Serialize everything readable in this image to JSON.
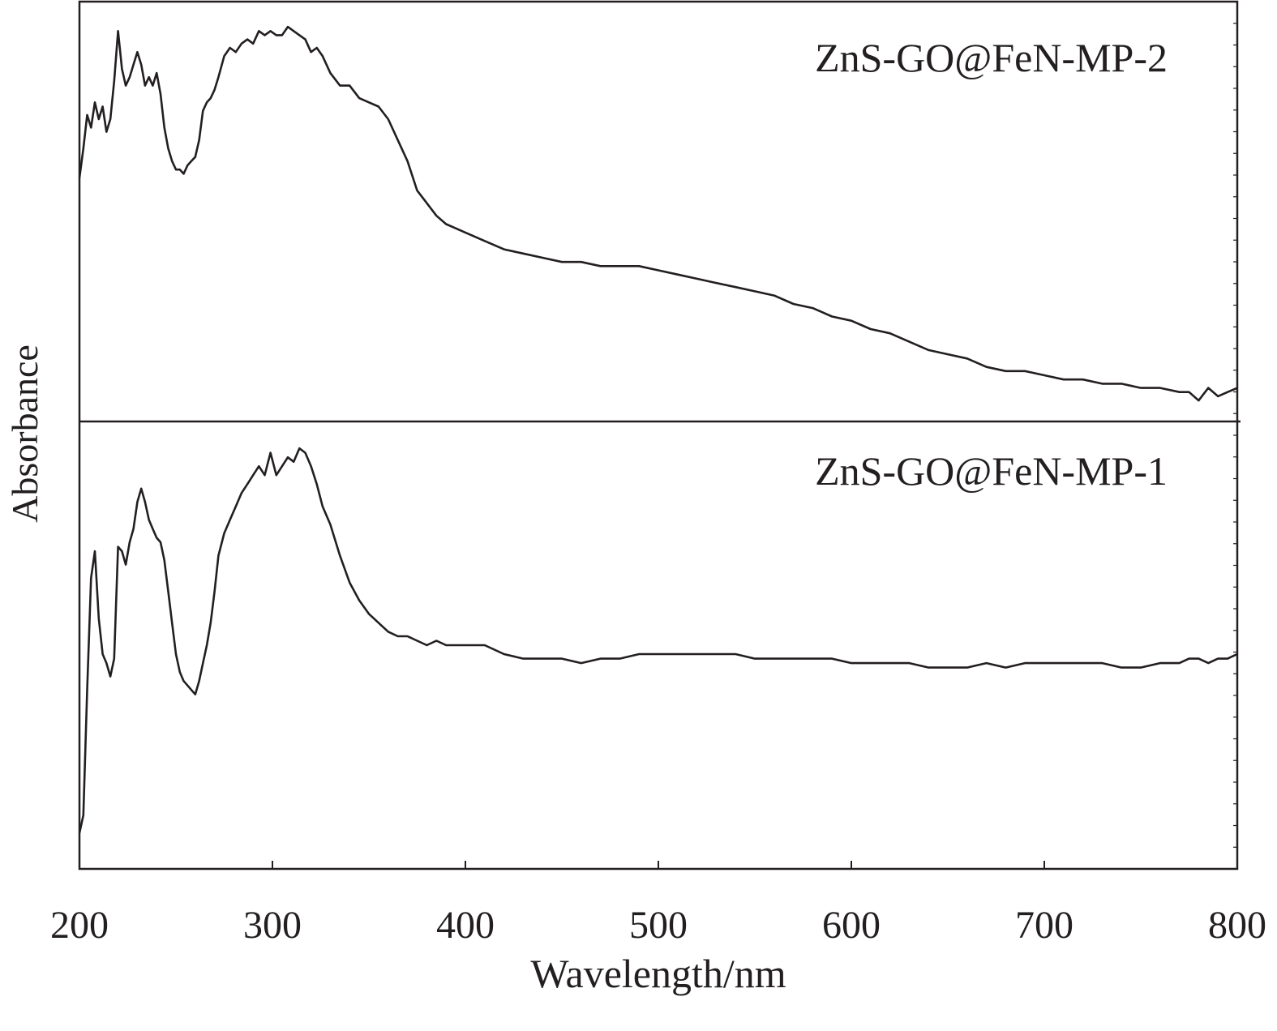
{
  "chart_data": {
    "type": "line",
    "xlabel": "Wavelength/nm",
    "ylabel": "Absorbance",
    "xlim": [
      200,
      800
    ],
    "xticks": [
      200,
      300,
      400,
      500,
      600,
      700,
      800
    ],
    "x_tick_labels": [
      "200",
      "300",
      "400",
      "500",
      "600",
      "700",
      "800"
    ],
    "y_ticks_labeled": false,
    "grid": false,
    "legend": "none",
    "line_color": "#231f20",
    "panels": [
      {
        "position": "top",
        "label": "ZnS-GO@FeN-MP-2",
        "ylim": [
          0,
          1
        ],
        "x": [
          200,
          202,
          204,
          206,
          208,
          210,
          212,
          214,
          216,
          218,
          220,
          222,
          224,
          226,
          228,
          230,
          232,
          234,
          236,
          238,
          240,
          242,
          244,
          246,
          248,
          250,
          252,
          254,
          256,
          258,
          260,
          262,
          264,
          266,
          268,
          270,
          272,
          275,
          278,
          281,
          284,
          287,
          290,
          293,
          296,
          299,
          302,
          305,
          308,
          311,
          314,
          317,
          320,
          323,
          326,
          330,
          335,
          340,
          345,
          350,
          355,
          360,
          365,
          370,
          375,
          380,
          385,
          390,
          395,
          400,
          410,
          420,
          430,
          440,
          450,
          460,
          470,
          480,
          490,
          500,
          510,
          520,
          530,
          540,
          550,
          560,
          570,
          580,
          590,
          600,
          610,
          620,
          630,
          640,
          650,
          660,
          670,
          680,
          690,
          700,
          710,
          720,
          730,
          740,
          750,
          760,
          770,
          775,
          780,
          785,
          790,
          795,
          800
        ],
        "values": [
          0.58,
          0.65,
          0.73,
          0.7,
          0.76,
          0.72,
          0.75,
          0.69,
          0.72,
          0.81,
          0.93,
          0.84,
          0.8,
          0.82,
          0.85,
          0.88,
          0.85,
          0.8,
          0.82,
          0.8,
          0.83,
          0.78,
          0.7,
          0.65,
          0.62,
          0.6,
          0.6,
          0.59,
          0.61,
          0.62,
          0.63,
          0.67,
          0.74,
          0.76,
          0.77,
          0.79,
          0.82,
          0.87,
          0.89,
          0.88,
          0.9,
          0.91,
          0.9,
          0.93,
          0.92,
          0.93,
          0.92,
          0.92,
          0.94,
          0.93,
          0.92,
          0.91,
          0.88,
          0.89,
          0.87,
          0.83,
          0.8,
          0.8,
          0.77,
          0.76,
          0.75,
          0.72,
          0.67,
          0.62,
          0.55,
          0.52,
          0.49,
          0.47,
          0.46,
          0.45,
          0.43,
          0.41,
          0.4,
          0.39,
          0.38,
          0.38,
          0.37,
          0.37,
          0.37,
          0.36,
          0.35,
          0.34,
          0.33,
          0.32,
          0.31,
          0.3,
          0.28,
          0.27,
          0.25,
          0.24,
          0.22,
          0.21,
          0.19,
          0.17,
          0.16,
          0.15,
          0.13,
          0.12,
          0.12,
          0.11,
          0.1,
          0.1,
          0.09,
          0.09,
          0.08,
          0.08,
          0.07,
          0.07,
          0.05,
          0.08,
          0.06,
          0.07,
          0.08
        ]
      },
      {
        "position": "bottom",
        "label": "ZnS-GO@FeN-MP-1",
        "ylim": [
          0,
          1
        ],
        "x": [
          200,
          202,
          204,
          206,
          208,
          210,
          212,
          214,
          216,
          218,
          220,
          222,
          224,
          226,
          228,
          230,
          232,
          234,
          236,
          238,
          240,
          242,
          244,
          246,
          248,
          250,
          252,
          254,
          256,
          258,
          260,
          262,
          264,
          266,
          268,
          270,
          272,
          275,
          278,
          281,
          284,
          287,
          290,
          293,
          296,
          299,
          302,
          305,
          308,
          311,
          314,
          317,
          320,
          323,
          326,
          330,
          335,
          340,
          345,
          350,
          355,
          360,
          365,
          370,
          375,
          380,
          385,
          390,
          395,
          400,
          410,
          420,
          430,
          440,
          450,
          460,
          470,
          480,
          490,
          500,
          510,
          520,
          530,
          540,
          550,
          560,
          570,
          580,
          590,
          600,
          610,
          620,
          630,
          640,
          650,
          660,
          670,
          680,
          690,
          700,
          710,
          720,
          730,
          740,
          750,
          760,
          770,
          775,
          780,
          785,
          790,
          795,
          800
        ],
        "values": [
          0.08,
          0.12,
          0.4,
          0.65,
          0.71,
          0.56,
          0.48,
          0.46,
          0.43,
          0.47,
          0.72,
          0.71,
          0.68,
          0.73,
          0.76,
          0.82,
          0.85,
          0.82,
          0.78,
          0.76,
          0.74,
          0.73,
          0.69,
          0.62,
          0.55,
          0.48,
          0.44,
          0.42,
          0.41,
          0.4,
          0.39,
          0.42,
          0.46,
          0.5,
          0.55,
          0.62,
          0.7,
          0.75,
          0.78,
          0.81,
          0.84,
          0.86,
          0.88,
          0.9,
          0.88,
          0.93,
          0.88,
          0.9,
          0.92,
          0.91,
          0.94,
          0.93,
          0.9,
          0.86,
          0.81,
          0.77,
          0.7,
          0.64,
          0.6,
          0.57,
          0.55,
          0.53,
          0.52,
          0.52,
          0.51,
          0.5,
          0.51,
          0.5,
          0.5,
          0.5,
          0.5,
          0.48,
          0.47,
          0.47,
          0.47,
          0.46,
          0.47,
          0.47,
          0.48,
          0.48,
          0.48,
          0.48,
          0.48,
          0.48,
          0.47,
          0.47,
          0.47,
          0.47,
          0.47,
          0.46,
          0.46,
          0.46,
          0.46,
          0.45,
          0.45,
          0.45,
          0.46,
          0.45,
          0.46,
          0.46,
          0.46,
          0.46,
          0.46,
          0.45,
          0.45,
          0.46,
          0.46,
          0.47,
          0.47,
          0.46,
          0.47,
          0.47,
          0.48
        ]
      }
    ]
  }
}
